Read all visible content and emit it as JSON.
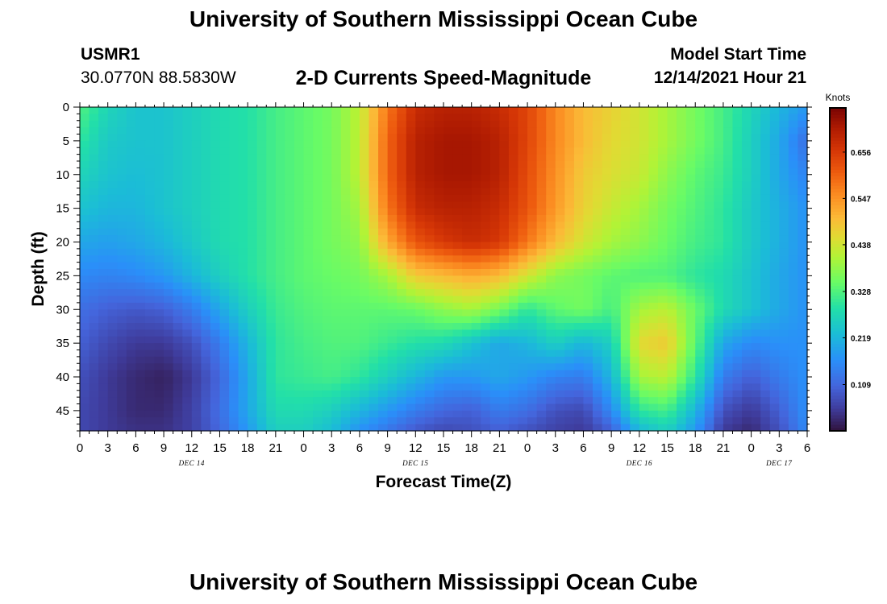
{
  "header": {
    "title": "University of Southern Mississippi Ocean Cube",
    "station_id": "USMR1",
    "station_position": "30.0770N  88.5830W",
    "subtitle": "2-D Currents Speed-Magnitude",
    "model_start_label": "Model Start Time",
    "model_start_time": "12/14/2021 Hour 21"
  },
  "footer": {
    "title": "University of Southern Mississippi Ocean Cube"
  },
  "chart_data": {
    "type": "heatmap",
    "xlabel": "Forecast Time(Z)",
    "ylabel": "Depth (ft)",
    "colorbar_label": "Knots",
    "colorbar_ticks": [
      "0.109",
      "0.219",
      "0.328",
      "0.438",
      "0.547",
      "0.656"
    ],
    "colorbar_range": [
      0,
      0.76
    ],
    "ylim": [
      0,
      48
    ],
    "y_ticks": [
      "0",
      "5",
      "10",
      "15",
      "20",
      "25",
      "30",
      "35",
      "40",
      "45"
    ],
    "xlim_hours": [
      0,
      78
    ],
    "x_ticks": [
      "0",
      "3",
      "6",
      "9",
      "12",
      "15",
      "18",
      "21",
      "0",
      "3",
      "6",
      "9",
      "12",
      "15",
      "18",
      "21",
      "0",
      "3",
      "6",
      "9",
      "12",
      "15",
      "18",
      "21",
      "0",
      "3",
      "6"
    ],
    "date_labels": [
      {
        "text": "DEC 14",
        "hour": 12
      },
      {
        "text": "DEC 15",
        "hour": 36
      },
      {
        "text": "DEC 16",
        "hour": 60
      },
      {
        "text": "DEC 17",
        "hour": 75
      }
    ],
    "grid": false,
    "speed_knots_depth_rows": [
      0,
      5,
      10,
      15,
      20,
      25,
      30,
      35,
      40,
      45,
      48
    ],
    "speed_knots_hour_cols": [
      0,
      3,
      6,
      9,
      12,
      15,
      18,
      21,
      24,
      27,
      30,
      33,
      36,
      39,
      42,
      45,
      48,
      51,
      54,
      57,
      60,
      63,
      66,
      69,
      72,
      75,
      78
    ],
    "speed_knots": [
      [
        0.33,
        0.27,
        0.24,
        0.24,
        0.26,
        0.28,
        0.29,
        0.32,
        0.34,
        0.36,
        0.42,
        0.58,
        0.68,
        0.7,
        0.7,
        0.68,
        0.64,
        0.56,
        0.5,
        0.47,
        0.44,
        0.4,
        0.36,
        0.32,
        0.27,
        0.22,
        0.18
      ],
      [
        0.3,
        0.25,
        0.24,
        0.24,
        0.26,
        0.28,
        0.29,
        0.32,
        0.34,
        0.36,
        0.42,
        0.6,
        0.7,
        0.72,
        0.72,
        0.7,
        0.64,
        0.56,
        0.5,
        0.46,
        0.44,
        0.4,
        0.36,
        0.32,
        0.26,
        0.2,
        0.12
      ],
      [
        0.27,
        0.24,
        0.23,
        0.24,
        0.26,
        0.28,
        0.29,
        0.32,
        0.34,
        0.36,
        0.42,
        0.6,
        0.7,
        0.72,
        0.72,
        0.7,
        0.63,
        0.55,
        0.48,
        0.45,
        0.43,
        0.38,
        0.34,
        0.31,
        0.26,
        0.2,
        0.15
      ],
      [
        0.24,
        0.22,
        0.22,
        0.24,
        0.26,
        0.28,
        0.29,
        0.32,
        0.34,
        0.36,
        0.4,
        0.58,
        0.68,
        0.7,
        0.7,
        0.68,
        0.62,
        0.54,
        0.47,
        0.43,
        0.4,
        0.36,
        0.33,
        0.3,
        0.25,
        0.21,
        0.17
      ],
      [
        0.2,
        0.19,
        0.2,
        0.22,
        0.25,
        0.28,
        0.29,
        0.32,
        0.34,
        0.36,
        0.38,
        0.52,
        0.62,
        0.66,
        0.68,
        0.66,
        0.58,
        0.5,
        0.44,
        0.4,
        0.38,
        0.35,
        0.32,
        0.3,
        0.25,
        0.21,
        0.17
      ],
      [
        0.16,
        0.15,
        0.16,
        0.18,
        0.22,
        0.26,
        0.29,
        0.32,
        0.34,
        0.35,
        0.36,
        0.4,
        0.48,
        0.5,
        0.52,
        0.5,
        0.44,
        0.38,
        0.36,
        0.34,
        0.33,
        0.33,
        0.3,
        0.28,
        0.24,
        0.2,
        0.17
      ],
      [
        0.12,
        0.1,
        0.09,
        0.1,
        0.14,
        0.2,
        0.26,
        0.31,
        0.33,
        0.34,
        0.34,
        0.34,
        0.35,
        0.38,
        0.4,
        0.36,
        0.3,
        0.34,
        0.36,
        0.32,
        0.4,
        0.42,
        0.35,
        0.28,
        0.24,
        0.2,
        0.17
      ],
      [
        0.1,
        0.07,
        0.05,
        0.05,
        0.08,
        0.14,
        0.22,
        0.3,
        0.32,
        0.33,
        0.33,
        0.31,
        0.29,
        0.28,
        0.24,
        0.2,
        0.22,
        0.26,
        0.22,
        0.26,
        0.46,
        0.48,
        0.34,
        0.2,
        0.16,
        0.17,
        0.17
      ],
      [
        0.08,
        0.05,
        0.03,
        0.02,
        0.05,
        0.11,
        0.2,
        0.3,
        0.31,
        0.32,
        0.3,
        0.26,
        0.22,
        0.18,
        0.18,
        0.2,
        0.18,
        0.15,
        0.14,
        0.22,
        0.4,
        0.42,
        0.3,
        0.14,
        0.1,
        0.14,
        0.17
      ],
      [
        0.07,
        0.05,
        0.03,
        0.03,
        0.06,
        0.12,
        0.2,
        0.28,
        0.28,
        0.26,
        0.22,
        0.18,
        0.14,
        0.11,
        0.1,
        0.14,
        0.12,
        0.08,
        0.07,
        0.16,
        0.3,
        0.32,
        0.22,
        0.08,
        0.05,
        0.1,
        0.17
      ],
      [
        0.07,
        0.05,
        0.04,
        0.04,
        0.06,
        0.11,
        0.18,
        0.26,
        0.26,
        0.23,
        0.17,
        0.13,
        0.09,
        0.07,
        0.08,
        0.1,
        0.08,
        0.06,
        0.05,
        0.1,
        0.22,
        0.26,
        0.18,
        0.05,
        0.03,
        0.08,
        0.16
      ]
    ]
  }
}
